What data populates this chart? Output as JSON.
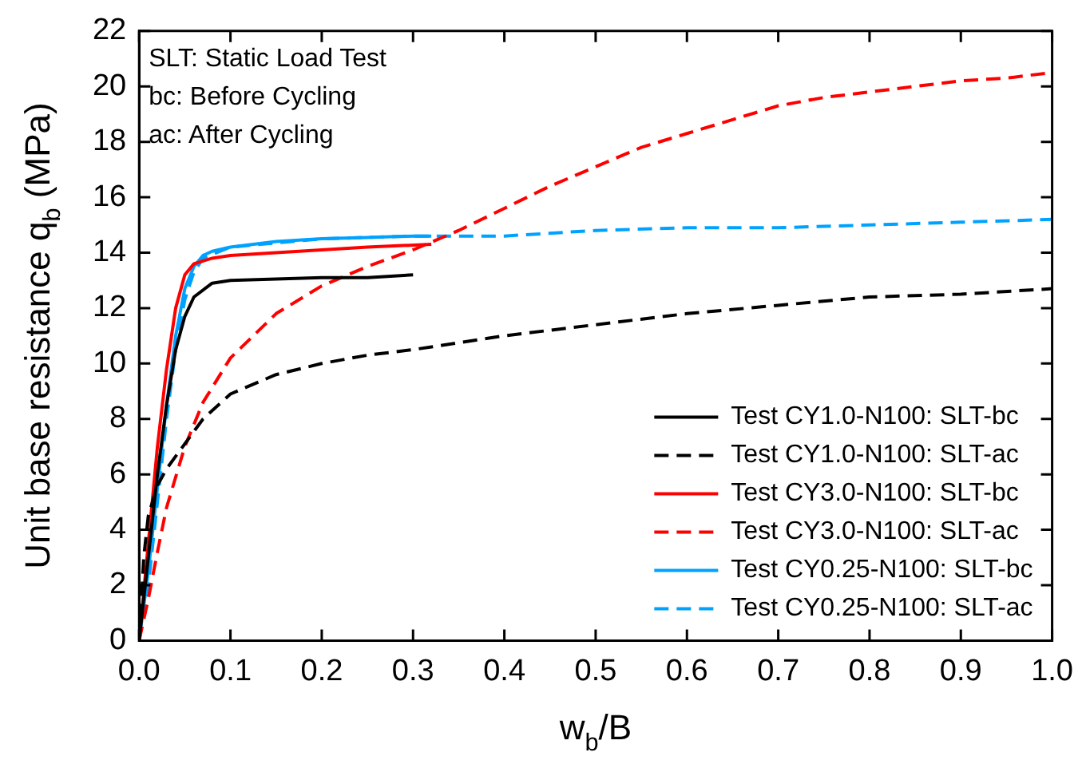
{
  "chart_data": {
    "type": "line",
    "xlabel": "w$_{b}$/B",
    "ylabel": "Unit base resistance q$_{b}$ (MPa)",
    "annotations": [
      "SLT: Static Load Test",
      "bc: Before Cycling",
      "ac: After Cycling"
    ],
    "xlim": [
      0,
      1
    ],
    "xticks": [
      {
        "value": 0,
        "label": "0.0"
      },
      {
        "value": 0.1,
        "label": "0.1"
      },
      {
        "value": 0.2,
        "label": "0.2"
      },
      {
        "value": 0.3,
        "label": "0.3"
      },
      {
        "value": 0.4,
        "label": "0.4"
      },
      {
        "value": 0.5,
        "label": "0.5"
      },
      {
        "value": 0.6,
        "label": "0.6"
      },
      {
        "value": 0.7,
        "label": "0.7"
      },
      {
        "value": 0.8,
        "label": "0.8"
      },
      {
        "value": 0.9,
        "label": "0.9"
      },
      {
        "value": 1,
        "label": "1.0"
      }
    ],
    "ylim": [
      0,
      22
    ],
    "yticks": [
      0,
      2,
      4,
      6,
      8,
      10,
      12,
      14,
      16,
      18,
      20,
      22
    ],
    "grid": false,
    "legend": "bottom right",
    "marker": "none",
    "series": [
      {
        "name": "Test CY1.0-N100: SLT-bc",
        "color": "#000000",
        "line_style": "solid",
        "x": [
          0,
          0.01,
          0.02,
          0.03,
          0.04,
          0.05,
          0.06,
          0.08,
          0.1,
          0.15,
          0.2,
          0.25,
          0.3
        ],
        "values": [
          0,
          3,
          6,
          8.5,
          10.5,
          11.7,
          12.4,
          12.9,
          13,
          13.05,
          13.1,
          13.1,
          13.2
        ]
      },
      {
        "name": "Test CY1.0-N100: SLT-ac",
        "color": "#000000",
        "line_style": "dashed",
        "x": [
          0,
          0.005,
          0.01,
          0.02,
          0.03,
          0.05,
          0.07,
          0.1,
          0.15,
          0.2,
          0.25,
          0.3,
          0.4,
          0.5,
          0.6,
          0.7,
          0.8,
          0.9,
          1
        ],
        "values": [
          0,
          3,
          4.5,
          5.6,
          6.2,
          7.1,
          8,
          8.9,
          9.6,
          10,
          10.3,
          10.5,
          11,
          11.4,
          11.8,
          12.1,
          12.4,
          12.5,
          12.7
        ]
      },
      {
        "name": "Test CY3.0-N100: SLT-bc",
        "color": "#ff0000",
        "line_style": "solid",
        "x": [
          0,
          0.01,
          0.02,
          0.03,
          0.04,
          0.05,
          0.06,
          0.08,
          0.1,
          0.15,
          0.2,
          0.25,
          0.32
        ],
        "values": [
          0,
          3.5,
          7,
          9.8,
          12,
          13.2,
          13.6,
          13.8,
          13.9,
          14,
          14.1,
          14.2,
          14.3
        ]
      },
      {
        "name": "Test CY3.0-N100: SLT-ac",
        "color": "#ff0000",
        "line_style": "dashed",
        "x": [
          0,
          0.01,
          0.02,
          0.03,
          0.05,
          0.07,
          0.1,
          0.15,
          0.2,
          0.25,
          0.3,
          0.35,
          0.4,
          0.45,
          0.5,
          0.55,
          0.6,
          0.65,
          0.7,
          0.75,
          0.8,
          0.85,
          0.9,
          0.95,
          1
        ],
        "values": [
          0,
          1.5,
          3.2,
          4.8,
          7,
          8.6,
          10.2,
          11.8,
          12.8,
          13.5,
          14.1,
          14.8,
          15.6,
          16.4,
          17.1,
          17.8,
          18.3,
          18.8,
          19.3,
          19.6,
          19.8,
          20,
          20.2,
          20.3,
          20.5
        ]
      },
      {
        "name": "Test CY0.25-N100: SLT-bc",
        "color": "#00a2ff",
        "line_style": "solid",
        "x": [
          0,
          0.01,
          0.02,
          0.03,
          0.04,
          0.05,
          0.06,
          0.07,
          0.08,
          0.1,
          0.15,
          0.2,
          0.25,
          0.3,
          0.32
        ],
        "values": [
          0,
          2.5,
          5.5,
          8.5,
          11,
          12.7,
          13.5,
          13.9,
          14.05,
          14.2,
          14.4,
          14.5,
          14.55,
          14.6,
          14.6
        ]
      },
      {
        "name": "Test CY0.25-N100: SLT-ac",
        "color": "#00a2ff",
        "line_style": "dashed",
        "x": [
          0,
          0.01,
          0.02,
          0.03,
          0.04,
          0.05,
          0.06,
          0.07,
          0.1,
          0.2,
          0.3,
          0.4,
          0.5,
          0.6,
          0.7,
          0.8,
          0.9,
          1
        ],
        "values": [
          0,
          2,
          5,
          8,
          10.5,
          12.3,
          13.3,
          13.8,
          14.2,
          14.5,
          14.6,
          14.6,
          14.8,
          14.9,
          14.9,
          15,
          15.1,
          15.2
        ]
      }
    ]
  }
}
